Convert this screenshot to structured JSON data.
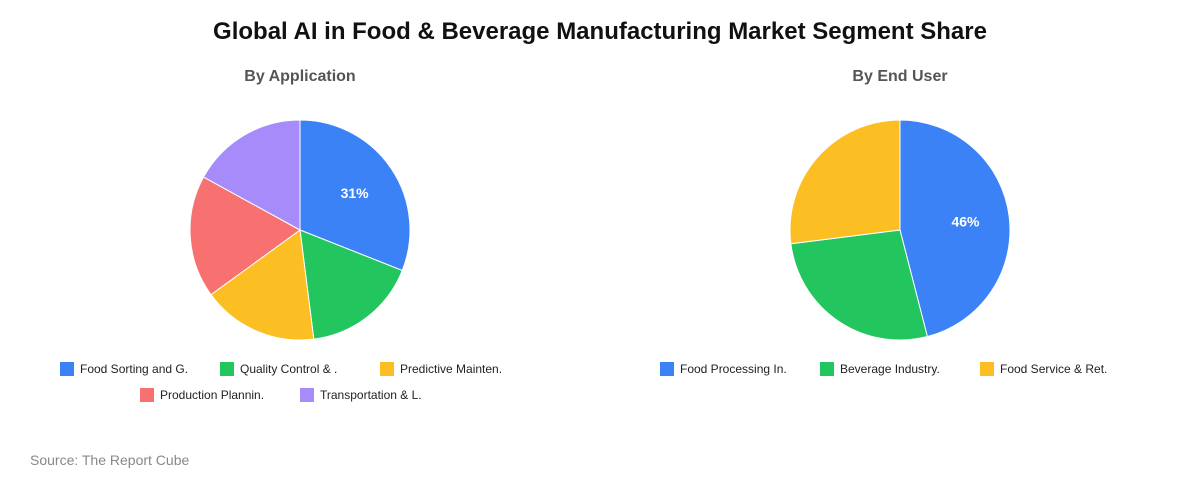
{
  "title": "Global AI in Food & Beverage Manufacturing Market Segment Share",
  "source": "Source: The Report Cube",
  "chart_data": [
    {
      "type": "pie",
      "title": "By Application",
      "categories": [
        "Food Sorting and G.",
        "Quality Control & .",
        "Predictive Mainten.",
        "Production Plannin.",
        "Transportation & L."
      ],
      "values": [
        31,
        17,
        17,
        18,
        17
      ],
      "colors": [
        "#3b82f6",
        "#22c55e",
        "#fbbf24",
        "#f87171",
        "#a78bfa"
      ],
      "data_labels": [
        "31%",
        "",
        "",
        "",
        ""
      ]
    },
    {
      "type": "pie",
      "title": "By End User",
      "categories": [
        "Food Processing In.",
        "Beverage Industry.",
        "Food Service & Ret."
      ],
      "values": [
        46,
        27,
        27
      ],
      "colors": [
        "#3b82f6",
        "#22c55e",
        "#fbbf24"
      ],
      "data_labels": [
        "46%",
        "",
        ""
      ]
    }
  ]
}
